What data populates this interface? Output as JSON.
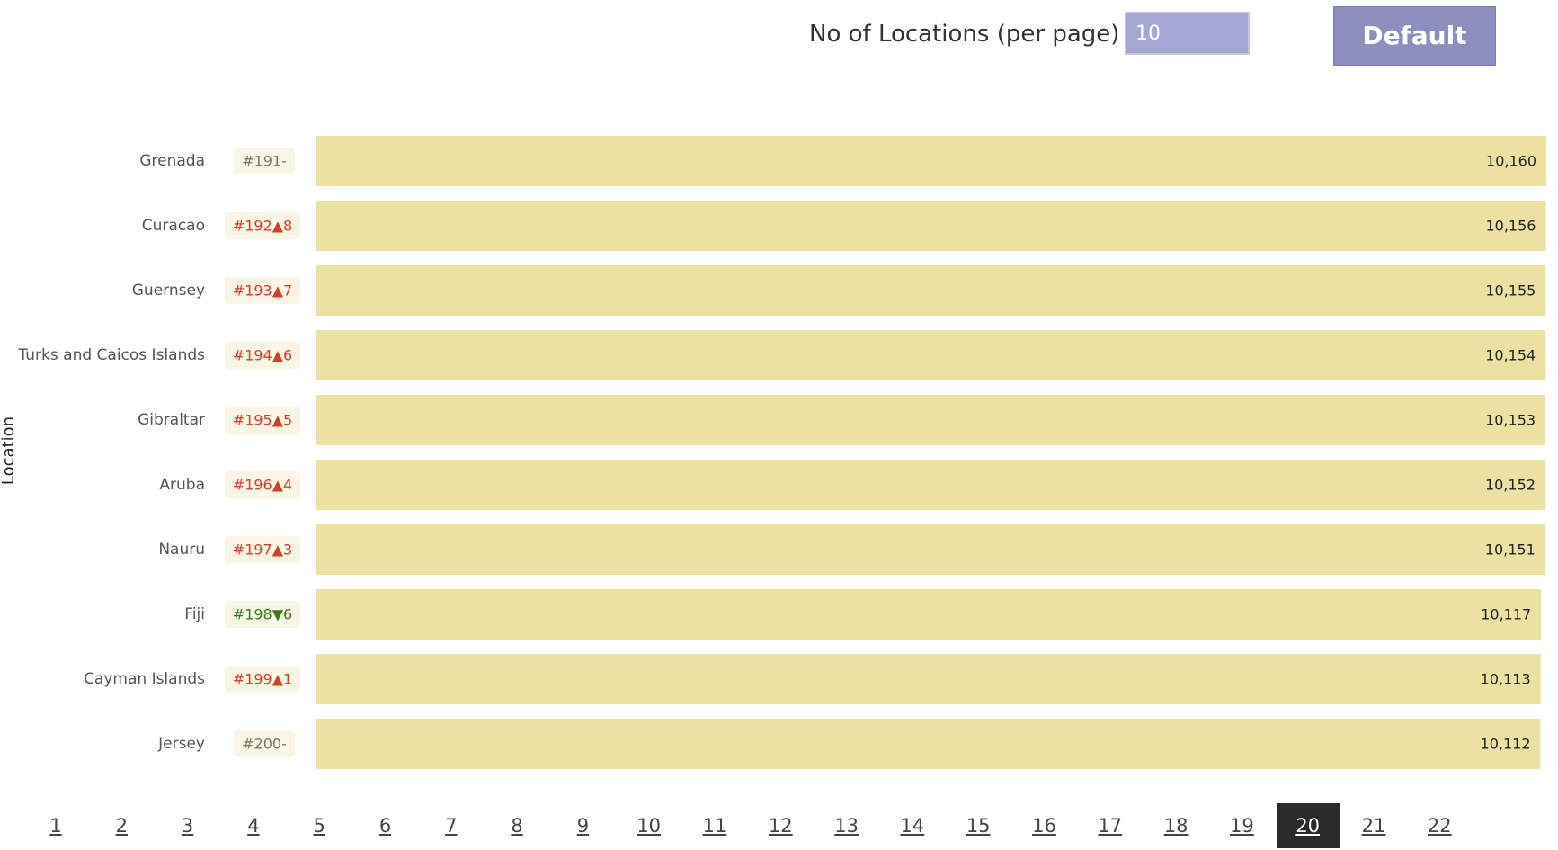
{
  "controls": {
    "per_page_label": "No of Locations (per page)",
    "per_page_value": "10",
    "default_label": "Default"
  },
  "colors": {
    "bar": "#ebe1a3",
    "badge_bg": "#faf6e6",
    "up": "#d43f2a",
    "down": "#3d7a1e",
    "neutral": "#7a7668"
  },
  "chart_data": {
    "type": "bar",
    "orientation": "horizontal",
    "ylabel": "Location",
    "categories": [
      "Grenada",
      "Curacao",
      "Guernsey",
      "Turks and Caicos Islands",
      "Gibraltar",
      "Aruba",
      "Nauru",
      "Fiji",
      "Cayman Islands",
      "Jersey"
    ],
    "values": [
      10160,
      10156,
      10155,
      10154,
      10153,
      10152,
      10151,
      10117,
      10113,
      10112
    ],
    "value_labels": [
      "10,160",
      "10,156",
      "10,155",
      "10,154",
      "10,153",
      "10,152",
      "10,151",
      "10,117",
      "10,113",
      "10,112"
    ],
    "xlim": [
      0,
      10160
    ],
    "ranks": [
      {
        "rank": "#191",
        "direction": "none",
        "change": "-"
      },
      {
        "rank": "#192",
        "direction": "up",
        "change": "8"
      },
      {
        "rank": "#193",
        "direction": "up",
        "change": "7"
      },
      {
        "rank": "#194",
        "direction": "up",
        "change": "6"
      },
      {
        "rank": "#195",
        "direction": "up",
        "change": "5"
      },
      {
        "rank": "#196",
        "direction": "up",
        "change": "4"
      },
      {
        "rank": "#197",
        "direction": "up",
        "change": "3"
      },
      {
        "rank": "#198",
        "direction": "down",
        "change": "6"
      },
      {
        "rank": "#199",
        "direction": "up",
        "change": "1"
      },
      {
        "rank": "#200",
        "direction": "none",
        "change": "-"
      }
    ],
    "grid": false
  },
  "pagination": {
    "pages": [
      "1",
      "2",
      "3",
      "4",
      "5",
      "6",
      "7",
      "8",
      "9",
      "10",
      "11",
      "12",
      "13",
      "14",
      "15",
      "16",
      "17",
      "18",
      "19",
      "20",
      "21",
      "22"
    ],
    "current": "20"
  }
}
